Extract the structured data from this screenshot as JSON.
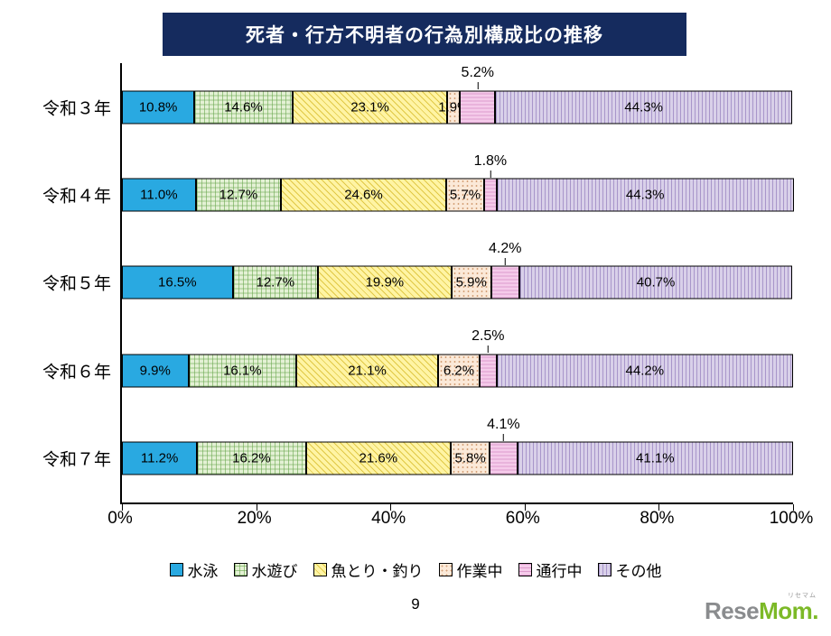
{
  "title": "死者・行方不明者の行為別構成比の推移",
  "chart_data": {
    "type": "bar",
    "variant": "horizontal-100pct-stacked",
    "title": "死者・行方不明者の行為別構成比の推移",
    "categories": [
      "令和３年",
      "令和４年",
      "令和５年",
      "令和６年",
      "令和７年"
    ],
    "series": [
      {
        "name": "水泳",
        "color": "#29a9e1",
        "pattern": "solid",
        "values": [
          10.8,
          11.0,
          16.5,
          9.9,
          11.2
        ]
      },
      {
        "name": "水遊び",
        "color": "#e4f1d5",
        "pattern": "grid",
        "values": [
          14.6,
          12.7,
          12.7,
          16.1,
          16.2
        ]
      },
      {
        "name": "魚とり・釣り",
        "color": "#fff4a4",
        "pattern": "diagonal",
        "values": [
          23.1,
          24.6,
          19.9,
          21.1,
          21.6
        ]
      },
      {
        "name": "作業中",
        "color": "#fbe9d8",
        "pattern": "dots",
        "values": [
          1.9,
          5.7,
          5.9,
          6.2,
          5.8
        ]
      },
      {
        "name": "通行中",
        "color": "#f5cbea",
        "pattern": "hlines",
        "values": [
          5.2,
          1.8,
          4.2,
          2.5,
          4.1
        ]
      },
      {
        "name": "その他",
        "color": "#d9d0e9",
        "pattern": "vlines",
        "values": [
          44.3,
          44.3,
          40.7,
          44.2,
          41.1
        ]
      }
    ],
    "callout_series": "通行中",
    "value_suffix": "%",
    "x_ticks": [
      {
        "label": "0%",
        "value": 0
      },
      {
        "label": "20%",
        "value": 20
      },
      {
        "label": "40%",
        "value": 40
      },
      {
        "label": "60%",
        "value": 60
      },
      {
        "label": "80%",
        "value": 80
      },
      {
        "label": "100%",
        "value": 100
      }
    ],
    "xlim": [
      0,
      100
    ],
    "legend_position": "bottom",
    "grid": false
  },
  "page_number": "9",
  "logo": {
    "gray": "Rese",
    "green": "Mom",
    "dot": ".",
    "ruby": "リセマム"
  }
}
